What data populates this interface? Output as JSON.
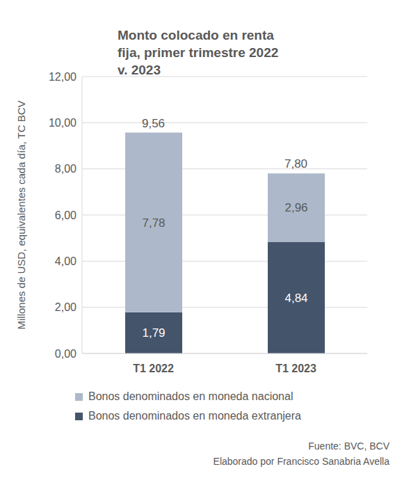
{
  "chart_data": {
    "type": "bar",
    "title": "Monto colocado en renta fija, primer trimestre 2022 v. 2023",
    "y_label": "Millones de USD, equivalentes cada día, TC BCV",
    "categories": [
      "T1 2022",
      "T1 2023"
    ],
    "series": [
      {
        "name": "Bonos denominados en moneda nacional",
        "color": "#adb9ca",
        "values": [
          7.78,
          2.96
        ],
        "value_labels": [
          "7,78",
          "2,96"
        ]
      },
      {
        "name": "Bonos denominados en moneda extranjera",
        "color": "#44546a",
        "values": [
          1.79,
          4.84
        ],
        "value_labels": [
          "1,79",
          "4,84"
        ]
      }
    ],
    "totals": [
      9.56,
      7.8
    ],
    "total_labels": [
      "9,56",
      "7,80"
    ],
    "ylim": [
      0,
      12
    ],
    "yticks": [
      {
        "value": 0,
        "label": "0,00"
      },
      {
        "value": 2,
        "label": "2,00"
      },
      {
        "value": 4,
        "label": "4,00"
      },
      {
        "value": 6,
        "label": "6,00"
      },
      {
        "value": 8,
        "label": "8,00"
      },
      {
        "value": 10,
        "label": "10,00"
      },
      {
        "value": 12,
        "label": "12,00"
      }
    ],
    "stacked": true,
    "data_labels": true,
    "grid": true,
    "legend": "bottom",
    "annotations": [
      "Fuente: BVC, BCV",
      "Elaborado por Francisco Sanabria Avella"
    ]
  }
}
